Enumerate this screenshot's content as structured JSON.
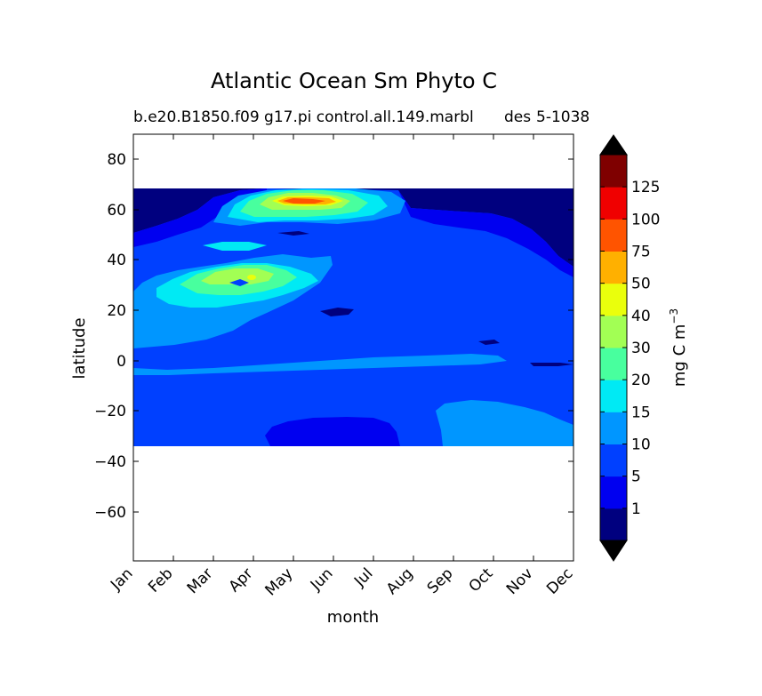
{
  "chart_data": {
    "type": "heatmap",
    "title": "Atlantic Ocean Sm Phyto C",
    "subtitle_left": "b.e20.B1850.f09 g17.pi control.all.149.marbl",
    "subtitle_right_a": "des",
    "subtitle_right_b": "5-1038",
    "xlabel": "month",
    "ylabel": "latitude",
    "x_categories": [
      "Jan",
      "Feb",
      "Mar",
      "Apr",
      "May",
      "Jun",
      "Jul",
      "Aug",
      "Sep",
      "Oct",
      "Nov",
      "Dec"
    ],
    "yticks": [
      "80",
      "60",
      "40",
      "20",
      "0",
      "−20",
      "−40",
      "−60"
    ],
    "ylim": [
      -80,
      90
    ],
    "data_lat_range": [
      -34,
      68
    ],
    "colorbar": {
      "label": "mg C m",
      "label_sup": "−3",
      "levels": [
        0,
        1,
        5,
        10,
        15,
        20,
        30,
        40,
        50,
        75,
        100,
        125,
        150
      ],
      "tick_labels": [
        "1",
        "5",
        "10",
        "15",
        "20",
        "30",
        "40",
        "50",
        "75",
        "100",
        "125"
      ],
      "colors": [
        "#00007f",
        "#0000f0",
        "#0040ff",
        "#0096ff",
        "#00eaf4",
        "#48ff9e",
        "#a2ff54",
        "#eaff0c",
        "#ffb000",
        "#ff5400",
        "#f00000",
        "#7f0000"
      ],
      "extend": "both",
      "under_color": "#000000",
      "over_color": "#000000"
    }
  }
}
